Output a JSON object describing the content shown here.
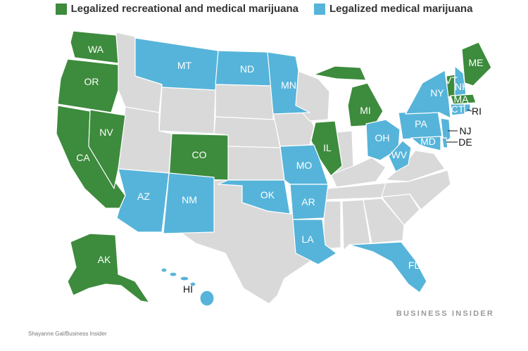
{
  "legend": {
    "recreational": {
      "label": "Legalized recreational and medical marijuana",
      "color": "#3d8b3d"
    },
    "medical": {
      "label": "Legalized medical marijuana",
      "color": "#56b4da"
    }
  },
  "colors": {
    "none": "#d9d9d9",
    "border": "#ffffff"
  },
  "states": [
    {
      "code": "WA",
      "status": "recreational"
    },
    {
      "code": "OR",
      "status": "recreational"
    },
    {
      "code": "CA",
      "status": "recreational"
    },
    {
      "code": "NV",
      "status": "recreational"
    },
    {
      "code": "CO",
      "status": "recreational"
    },
    {
      "code": "IL",
      "status": "recreational"
    },
    {
      "code": "MI",
      "status": "recreational"
    },
    {
      "code": "VT",
      "status": "recreational"
    },
    {
      "code": "ME",
      "status": "recreational"
    },
    {
      "code": "MA",
      "status": "recreational"
    },
    {
      "code": "AK",
      "status": "recreational"
    },
    {
      "code": "MT",
      "status": "medical"
    },
    {
      "code": "ND",
      "status": "medical"
    },
    {
      "code": "MN",
      "status": "medical"
    },
    {
      "code": "AZ",
      "status": "medical"
    },
    {
      "code": "NM",
      "status": "medical"
    },
    {
      "code": "OK",
      "status": "medical"
    },
    {
      "code": "MO",
      "status": "medical"
    },
    {
      "code": "AR",
      "status": "medical"
    },
    {
      "code": "LA",
      "status": "medical"
    },
    {
      "code": "FL",
      "status": "medical"
    },
    {
      "code": "OH",
      "status": "medical"
    },
    {
      "code": "WV",
      "status": "medical"
    },
    {
      "code": "PA",
      "status": "medical"
    },
    {
      "code": "NY",
      "status": "medical"
    },
    {
      "code": "NH",
      "status": "medical"
    },
    {
      "code": "CT",
      "status": "medical"
    },
    {
      "code": "RI",
      "status": "medical"
    },
    {
      "code": "NJ",
      "status": "medical"
    },
    {
      "code": "DE",
      "status": "medical"
    },
    {
      "code": "MD",
      "status": "medical"
    },
    {
      "code": "HI",
      "status": "medical"
    }
  ],
  "brand": "BUSINESS INSIDER",
  "credit": "Shayanne Gal/Business Insider"
}
